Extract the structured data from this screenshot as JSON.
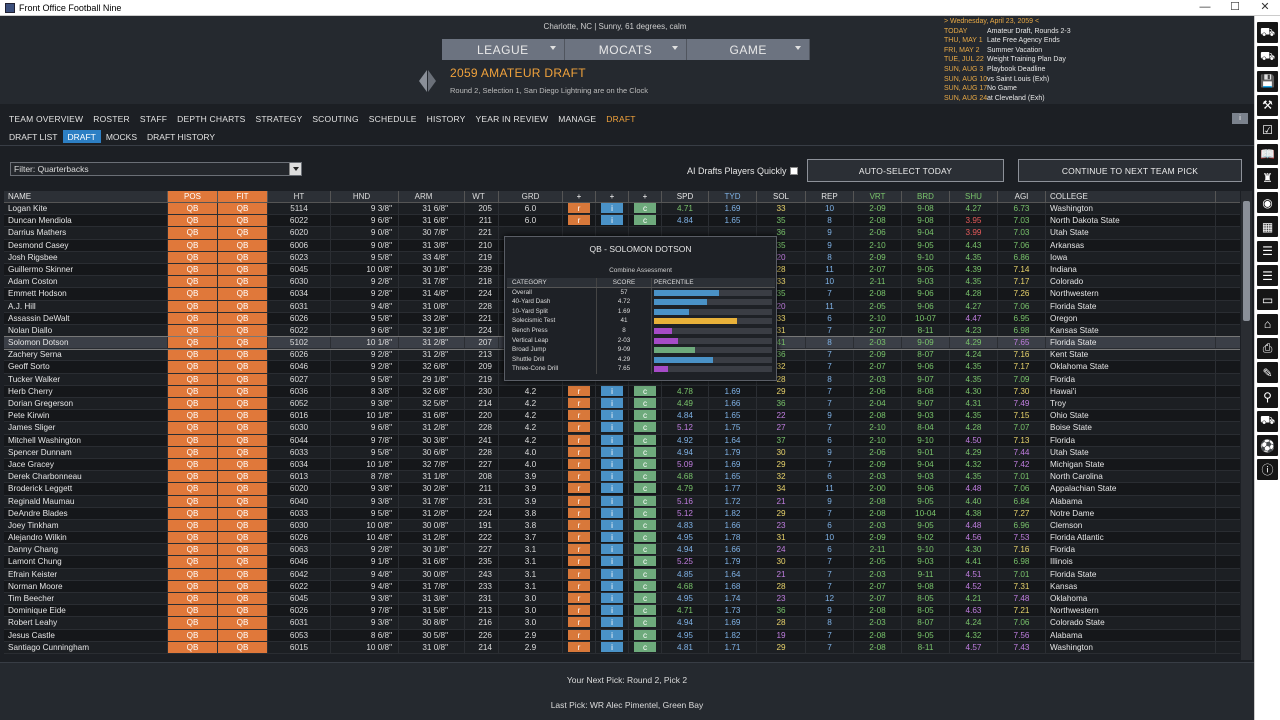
{
  "window": {
    "title": "Front Office Football Nine",
    "minimize": "—",
    "maximize": "☐",
    "close": "✕"
  },
  "header": {
    "weather": "Charlotte, NC | Sunny, 61 degrees, calm",
    "nav": [
      "LEAGUE",
      "MOCATS",
      "GAME"
    ],
    "draft_title": "2059 AMATEUR DRAFT",
    "clock": "Round 2, Selection 1, San Diego Lightning are on the Clock"
  },
  "calendar": {
    "header": "> Wednesday, April 23, 2059 <",
    "events": [
      {
        "date": "TODAY",
        "event": "Amateur Draft, Rounds 2-3"
      },
      {
        "date": "THU, MAY 1",
        "event": "Late Free Agency Ends"
      },
      {
        "date": "FRI, MAY 2",
        "event": "Summer Vacation"
      },
      {
        "date": "TUE, JUL 22",
        "event": "Weight Training Plan Day"
      },
      {
        "date": "SUN, AUG 3",
        "event": "Playbook Deadline"
      },
      {
        "date": "SUN, AUG 10",
        "event": "vs Saint Louis (Exh)"
      },
      {
        "date": "SUN, AUG 17",
        "event": "No Game"
      },
      {
        "date": "SUN, AUG 24",
        "event": "at Cleveland (Exh)"
      }
    ]
  },
  "tabs": [
    "TEAM OVERVIEW",
    "ROSTER",
    "STAFF",
    "DEPTH CHARTS",
    "STRATEGY",
    "SCOUTING",
    "SCHEDULE",
    "HISTORY",
    "YEAR IN REVIEW",
    "MANAGE",
    "DRAFT"
  ],
  "subtabs": [
    "DRAFT LIST",
    "DRAFT",
    "MOCKS",
    "DRAFT HISTORY"
  ],
  "small_button": "i",
  "controls": {
    "filter": "Filter: Quarterbacks",
    "ai_label": "AI Drafts Players Quickly",
    "auto_select": "AUTO-SELECT TODAY",
    "continue": "CONTINUE TO NEXT TEAM PICK"
  },
  "columns": [
    "NAME",
    "POS",
    "FIT",
    "HT",
    "HND",
    "ARM",
    "WT",
    "GRD",
    "+",
    "+",
    "+",
    "SPD",
    "TYD",
    "SOL",
    "REP",
    "VRT",
    "BRD",
    "SHU",
    "AGI",
    "COLLEGE"
  ],
  "players": [
    [
      "Logan Kite",
      "QB",
      "QB",
      "5114",
      "9 3/8\"",
      "31 6/8\"",
      "205",
      "6.0",
      "r",
      "i",
      "c",
      "4.71",
      "1.69",
      "33",
      "10",
      "2-09",
      "9-08",
      "4.27",
      "6.73",
      "Washington"
    ],
    [
      "Duncan Mendiola",
      "QB",
      "QB",
      "6022",
      "9 6/8\"",
      "31 6/8\"",
      "211",
      "6.0",
      "r",
      "i",
      "c",
      "4.84",
      "1.65",
      "35",
      "8",
      "2-08",
      "9-08",
      "3.95",
      "7.03",
      "North Dakota State"
    ],
    [
      "Darrius Mathers",
      "QB",
      "QB",
      "6020",
      "9 0/8\"",
      "30 7/8\"",
      "221",
      "",
      "",
      "",
      "",
      "",
      "",
      "36",
      "9",
      "2-06",
      "9-04",
      "3.99",
      "7.03",
      "Utah State"
    ],
    [
      "Desmond Casey",
      "QB",
      "QB",
      "6006",
      "9 0/8\"",
      "31 3/8\"",
      "210",
      "",
      "",
      "",
      "",
      "",
      "",
      "35",
      "9",
      "2-10",
      "9-05",
      "4.43",
      "7.06",
      "Arkansas"
    ],
    [
      "Josh Rigsbee",
      "QB",
      "QB",
      "6023",
      "9 5/8\"",
      "33 4/8\"",
      "219",
      "",
      "",
      "",
      "",
      "",
      "",
      "20",
      "8",
      "2-09",
      "9-10",
      "4.35",
      "6.86",
      "Iowa"
    ],
    [
      "Guillermo Skinner",
      "QB",
      "QB",
      "6045",
      "10 0/8\"",
      "30 1/8\"",
      "239",
      "",
      "",
      "",
      "",
      "",
      "",
      "28",
      "11",
      "2-07",
      "9-05",
      "4.39",
      "7.14",
      "Indiana"
    ],
    [
      "Adam Coston",
      "QB",
      "QB",
      "6030",
      "9 2/8\"",
      "31 7/8\"",
      "218",
      "",
      "",
      "",
      "",
      "",
      "",
      "33",
      "10",
      "2-11",
      "9-03",
      "4.35",
      "7.17",
      "Colorado"
    ],
    [
      "Emmett Hodson",
      "QB",
      "QB",
      "6034",
      "9 2/8\"",
      "31 4/8\"",
      "224",
      "",
      "",
      "",
      "",
      "",
      "",
      "35",
      "7",
      "2-08",
      "9-06",
      "4.28",
      "7.26",
      "Northwestern"
    ],
    [
      "A.J. Hill",
      "QB",
      "QB",
      "6031",
      "9 4/8\"",
      "31 0/8\"",
      "228",
      "",
      "",
      "",
      "",
      "",
      "",
      "20",
      "11",
      "2-05",
      "9-06",
      "4.27",
      "7.06",
      "Florida State"
    ],
    [
      "Assassin DeWalt",
      "QB",
      "QB",
      "6026",
      "9 5/8\"",
      "33 2/8\"",
      "221",
      "",
      "",
      "",
      "",
      "",
      "",
      "33",
      "6",
      "2-10",
      "10-07",
      "4.47",
      "6.95",
      "Oregon"
    ],
    [
      "Nolan Diallo",
      "QB",
      "QB",
      "6022",
      "9 6/8\"",
      "32 1/8\"",
      "224",
      "",
      "",
      "",
      "",
      "",
      "",
      "31",
      "7",
      "2-07",
      "8-11",
      "4.23",
      "6.98",
      "Kansas State"
    ],
    [
      "Solomon Dotson",
      "QB",
      "QB",
      "5102",
      "10 1/8\"",
      "31 2/8\"",
      "207",
      "",
      "",
      "",
      "",
      "",
      "",
      "41",
      "8",
      "2-03",
      "9-09",
      "4.29",
      "7.65",
      "Florida State"
    ],
    [
      "Zachery Serna",
      "QB",
      "QB",
      "6026",
      "9 2/8\"",
      "31 2/8\"",
      "213",
      "",
      "",
      "",
      "",
      "",
      "",
      "36",
      "7",
      "2-09",
      "8-07",
      "4.24",
      "7.16",
      "Kent State"
    ],
    [
      "Geoff Sorto",
      "QB",
      "QB",
      "6046",
      "9 2/8\"",
      "32 6/8\"",
      "209",
      "",
      "",
      "",
      "",
      "",
      "",
      "32",
      "7",
      "2-07",
      "9-06",
      "4.35",
      "7.17",
      "Oklahoma State"
    ],
    [
      "Tucker Walker",
      "QB",
      "QB",
      "6027",
      "9 5/8\"",
      "29 1/8\"",
      "219",
      "",
      "",
      "",
      "",
      "",
      "",
      "28",
      "8",
      "2-03",
      "9-07",
      "4.35",
      "7.09",
      "Florida"
    ],
    [
      "Herb Cherry",
      "QB",
      "QB",
      "6036",
      "8 3/8\"",
      "32 6/8\"",
      "230",
      "4.2",
      "r",
      "i",
      "c",
      "4.78",
      "1.69",
      "29",
      "7",
      "2-06",
      "8-08",
      "4.30",
      "7.30",
      "Hawai'i"
    ],
    [
      "Dorian Gregerson",
      "QB",
      "QB",
      "6052",
      "9 3/8\"",
      "32 5/8\"",
      "214",
      "4.2",
      "r",
      "i",
      "c",
      "4.49",
      "1.66",
      "36",
      "7",
      "2-04",
      "9-07",
      "4.31",
      "7.49",
      "Troy"
    ],
    [
      "Pete Kirwin",
      "QB",
      "QB",
      "6016",
      "10 1/8\"",
      "31 6/8\"",
      "220",
      "4.2",
      "r",
      "i",
      "c",
      "4.84",
      "1.65",
      "22",
      "9",
      "2-08",
      "9-03",
      "4.35",
      "7.15",
      "Ohio State"
    ],
    [
      "James Sliger",
      "QB",
      "QB",
      "6030",
      "9 6/8\"",
      "31 2/8\"",
      "228",
      "4.2",
      "r",
      "i",
      "c",
      "5.12",
      "1.75",
      "27",
      "7",
      "2-10",
      "8-04",
      "4.28",
      "7.07",
      "Boise State"
    ],
    [
      "Mitchell Washington",
      "QB",
      "QB",
      "6044",
      "9 7/8\"",
      "30 3/8\"",
      "241",
      "4.2",
      "r",
      "i",
      "c",
      "4.92",
      "1.64",
      "37",
      "6",
      "2-10",
      "9-10",
      "4.50",
      "7.13",
      "Florida"
    ],
    [
      "Spencer Dunnam",
      "QB",
      "QB",
      "6033",
      "9 5/8\"",
      "30 6/8\"",
      "228",
      "4.0",
      "r",
      "i",
      "c",
      "4.94",
      "1.79",
      "30",
      "9",
      "2-06",
      "9-01",
      "4.29",
      "7.44",
      "Utah State"
    ],
    [
      "Jace Gracey",
      "QB",
      "QB",
      "6034",
      "10 1/8\"",
      "32 7/8\"",
      "227",
      "4.0",
      "r",
      "i",
      "c",
      "5.09",
      "1.69",
      "29",
      "7",
      "2-09",
      "9-04",
      "4.32",
      "7.42",
      "Michigan State"
    ],
    [
      "Derek Charbonneau",
      "QB",
      "QB",
      "6013",
      "8 7/8\"",
      "31 1/8\"",
      "208",
      "3.9",
      "r",
      "i",
      "c",
      "4.68",
      "1.65",
      "32",
      "6",
      "2-03",
      "9-03",
      "4.35",
      "7.01",
      "North Carolina"
    ],
    [
      "Broderick Leggett",
      "QB",
      "QB",
      "6020",
      "9 3/8\"",
      "30 2/8\"",
      "211",
      "3.9",
      "r",
      "i",
      "c",
      "4.79",
      "1.77",
      "34",
      "11",
      "2-00",
      "9-06",
      "4.48",
      "7.06",
      "Appalachian State"
    ],
    [
      "Reginald Maumau",
      "QB",
      "QB",
      "6040",
      "9 3/8\"",
      "31 7/8\"",
      "231",
      "3.9",
      "r",
      "i",
      "c",
      "5.16",
      "1.72",
      "21",
      "9",
      "2-08",
      "9-05",
      "4.40",
      "6.84",
      "Alabama"
    ],
    [
      "DeAndre Blades",
      "QB",
      "QB",
      "6033",
      "9 5/8\"",
      "31 2/8\"",
      "224",
      "3.8",
      "r",
      "i",
      "c",
      "5.12",
      "1.82",
      "29",
      "7",
      "2-08",
      "10-04",
      "4.38",
      "7.27",
      "Notre Dame"
    ],
    [
      "Joey Tinkham",
      "QB",
      "QB",
      "6030",
      "10 0/8\"",
      "30 0/8\"",
      "191",
      "3.8",
      "r",
      "i",
      "c",
      "4.83",
      "1.66",
      "23",
      "6",
      "2-03",
      "9-05",
      "4.48",
      "6.96",
      "Clemson"
    ],
    [
      "Alejandro Wilkin",
      "QB",
      "QB",
      "6026",
      "10 4/8\"",
      "31 2/8\"",
      "222",
      "3.7",
      "r",
      "i",
      "c",
      "4.95",
      "1.78",
      "31",
      "10",
      "2-09",
      "9-02",
      "4.56",
      "7.53",
      "Florida Atlantic"
    ],
    [
      "Danny Chang",
      "QB",
      "QB",
      "6063",
      "9 2/8\"",
      "30 1/8\"",
      "227",
      "3.1",
      "r",
      "i",
      "c",
      "4.94",
      "1.66",
      "24",
      "6",
      "2-11",
      "9-10",
      "4.30",
      "7.16",
      "Florida"
    ],
    [
      "Lamont Chung",
      "QB",
      "QB",
      "6046",
      "9 1/8\"",
      "31 6/8\"",
      "235",
      "3.1",
      "r",
      "i",
      "c",
      "5.25",
      "1.79",
      "30",
      "7",
      "2-05",
      "9-03",
      "4.41",
      "6.98",
      "Illinois"
    ],
    [
      "Efrain Keister",
      "QB",
      "QB",
      "6042",
      "9 4/8\"",
      "30 0/8\"",
      "243",
      "3.1",
      "r",
      "i",
      "c",
      "4.85",
      "1.64",
      "21",
      "7",
      "2-03",
      "9-11",
      "4.51",
      "7.01",
      "Florida State"
    ],
    [
      "Norman Moore",
      "QB",
      "QB",
      "6022",
      "9 4/8\"",
      "31 7/8\"",
      "233",
      "3.1",
      "r",
      "i",
      "c",
      "4.68",
      "1.68",
      "28",
      "7",
      "2-07",
      "9-08",
      "4.52",
      "7.31",
      "Kansas"
    ],
    [
      "Tim Beecher",
      "QB",
      "QB",
      "6045",
      "9 3/8\"",
      "31 3/8\"",
      "231",
      "3.0",
      "r",
      "i",
      "c",
      "4.95",
      "1.74",
      "23",
      "12",
      "2-07",
      "8-05",
      "4.21",
      "7.48",
      "Oklahoma"
    ],
    [
      "Dominique Eide",
      "QB",
      "QB",
      "6026",
      "9 7/8\"",
      "31 5/8\"",
      "213",
      "3.0",
      "r",
      "i",
      "c",
      "4.71",
      "1.73",
      "36",
      "9",
      "2-08",
      "8-05",
      "4.63",
      "7.21",
      "Northwestern"
    ],
    [
      "Robert Leahy",
      "QB",
      "QB",
      "6031",
      "9 3/8\"",
      "30 8/8\"",
      "216",
      "3.0",
      "r",
      "i",
      "c",
      "4.94",
      "1.69",
      "28",
      "8",
      "2-03",
      "8-07",
      "4.24",
      "7.06",
      "Colorado State"
    ],
    [
      "Jesus Castle",
      "QB",
      "QB",
      "6053",
      "8 6/8\"",
      "30 5/8\"",
      "226",
      "2.9",
      "r",
      "i",
      "c",
      "4.95",
      "1.82",
      "19",
      "7",
      "2-08",
      "9-05",
      "4.32",
      "7.56",
      "Alabama"
    ],
    [
      "Santiago Cunningham",
      "QB",
      "QB",
      "6015",
      "10 0/8\"",
      "31 0/8\"",
      "214",
      "2.9",
      "r",
      "i",
      "c",
      "4.81",
      "1.71",
      "29",
      "7",
      "2-08",
      "8-11",
      "4.57",
      "7.43",
      "Washington"
    ]
  ],
  "popup": {
    "title": "QB - SOLOMON DOTSON",
    "subtitle": "Combine Assessment",
    "headers": [
      "CATEGORY",
      "SCORE",
      "PERCENTILE"
    ],
    "rows": [
      {
        "cat": "Overall",
        "score": "57",
        "pct": 55,
        "color": "#4a92c7"
      },
      {
        "cat": "40-Yard Dash",
        "score": "4.72",
        "pct": 45,
        "color": "#4a92c7"
      },
      {
        "cat": "10-Yard Split",
        "score": "1.69",
        "pct": 30,
        "color": "#4a92c7"
      },
      {
        "cat": "Solecismic Test",
        "score": "41",
        "pct": 70,
        "color": "#e8b13a"
      },
      {
        "cat": "Bench Press",
        "score": "8",
        "pct": 15,
        "color": "#a64bc7"
      },
      {
        "cat": "Vertical Leap",
        "score": "2-03",
        "pct": 20,
        "color": "#a64bc7"
      },
      {
        "cat": "Broad Jump",
        "score": "9-09",
        "pct": 35,
        "color": "#6eaa7c"
      },
      {
        "cat": "Shuttle Drill",
        "score": "4.29",
        "pct": 50,
        "color": "#4a92c7"
      },
      {
        "cat": "Three-Cone Drill",
        "score": "7.65",
        "pct": 12,
        "color": "#a64bc7"
      }
    ]
  },
  "footer": {
    "next_pick": "Your Next Pick: Round 2, Pick 2",
    "last_pick": "Last Pick: WR Alec Pimentel, Green Bay"
  },
  "sidebar_icons": [
    "car-icon",
    "car-icon",
    "save-icon",
    "tools-icon",
    "checklist-icon",
    "book-icon",
    "trophy-icon",
    "eye-icon",
    "grid-icon",
    "list-icon",
    "list-icon",
    "monitor-icon",
    "tag-icon",
    "printer-icon",
    "pen-icon",
    "magnifier-icon",
    "cart-icon",
    "soccer-ball-icon",
    "info-icon"
  ]
}
